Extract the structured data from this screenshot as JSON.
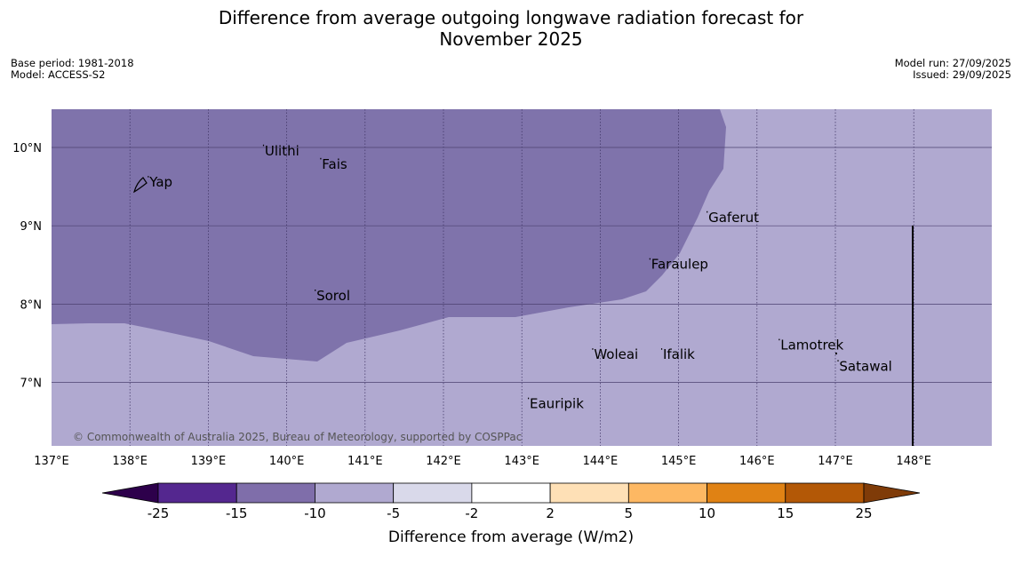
{
  "title_line1": "Difference from average outgoing longwave radiation forecast for",
  "title_line2": "November 2025",
  "meta": {
    "base_period": "Base period: 1981-2018",
    "model": "Model: ACCESS-S2",
    "model_run": "Model run: 27/09/2025",
    "issued": "Issued: 29/09/2025"
  },
  "map": {
    "lon_labels": [
      "137°E",
      "138°E",
      "139°E",
      "140°E",
      "141°E",
      "142°E",
      "143°E",
      "144°E",
      "145°E",
      "146°E",
      "147°E",
      "148°E"
    ],
    "lat_labels": [
      "10°N",
      "9°N",
      "8°N",
      "7°N"
    ],
    "places": [
      {
        "name": "Yap",
        "lon": 138.25,
        "lat": 9.5
      },
      {
        "name": "Ulithi",
        "lon": 139.72,
        "lat": 9.9
      },
      {
        "name": "Fais",
        "lon": 140.45,
        "lat": 9.73
      },
      {
        "name": "Gaferut",
        "lon": 145.38,
        "lat": 9.05
      },
      {
        "name": "Faraulep",
        "lon": 144.65,
        "lat": 8.45
      },
      {
        "name": "Sorol",
        "lon": 140.38,
        "lat": 8.05
      },
      {
        "name": "Woleai",
        "lon": 143.92,
        "lat": 7.3
      },
      {
        "name": "Ifalik",
        "lon": 144.8,
        "lat": 7.3
      },
      {
        "name": "Lamotrek",
        "lon": 146.3,
        "lat": 7.42
      },
      {
        "name": "Satawal",
        "lon": 147.05,
        "lat": 7.15
      },
      {
        "name": "Eauripik",
        "lon": 143.1,
        "lat": 6.67
      }
    ],
    "copyright": "© Commonwealth of Australia 2025, Bureau of Meteorology, supported by COSPPac"
  },
  "colorbar": {
    "ticks": [
      "-25",
      "-15",
      "-10",
      "-5",
      "-2",
      "2",
      "5",
      "10",
      "15",
      "25"
    ],
    "colors": [
      "#54278f",
      "#7f6eaa",
      "#b0a9d0",
      "#d9d9ea",
      "#ffffff",
      "#fee0b6",
      "#fdb863",
      "#e08214",
      "#b35806"
    ],
    "under_color": "#2d004b",
    "over_color": "#7f3b08",
    "label": "Difference from average (W/m2)"
  },
  "fill_colors": {
    "low_band": "#7f73ab",
    "mid_band": "#b0a9d0"
  }
}
